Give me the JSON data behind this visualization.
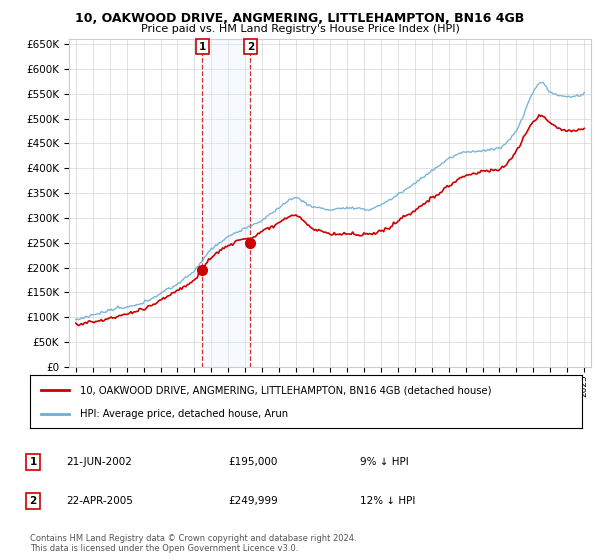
{
  "title": "10, OAKWOOD DRIVE, ANGMERING, LITTLEHAMPTON, BN16 4GB",
  "subtitle": "Price paid vs. HM Land Registry's House Price Index (HPI)",
  "legend_line1": "10, OAKWOOD DRIVE, ANGMERING, LITTLEHAMPTON, BN16 4GB (detached house)",
  "legend_line2": "HPI: Average price, detached house, Arun",
  "transactions": [
    {
      "label": "1",
      "date": "21-JUN-2002",
      "price": 195000,
      "pct": "9%",
      "dir": "↓",
      "x": 2002.47
    },
    {
      "label": "2",
      "date": "22-APR-2005",
      "price": 249999,
      "pct": "12%",
      "dir": "↓",
      "x": 2005.3
    }
  ],
  "footnote": "Contains HM Land Registry data © Crown copyright and database right 2024.\nThis data is licensed under the Open Government Licence v3.0.",
  "hpi_color": "#6baed6",
  "price_color": "#cc0000",
  "transaction_color": "#cc0000",
  "shade_color": "#ddeeff",
  "ylim": [
    0,
    660000
  ],
  "yticks": [
    0,
    50000,
    100000,
    150000,
    200000,
    250000,
    300000,
    350000,
    400000,
    450000,
    500000,
    550000,
    600000,
    650000
  ],
  "background_color": "#ffffff",
  "grid_color": "#cccccc"
}
